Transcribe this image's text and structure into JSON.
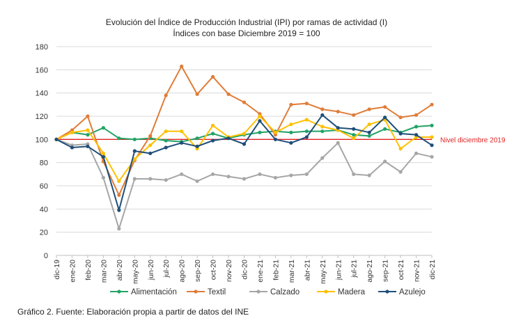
{
  "chart_data": {
    "type": "line",
    "title": "Evolución del Índice de Producción Industrial (IPI) por ramas de actividad (I)",
    "subtitle": "Índices con base Diciembre 2019 = 100",
    "ylim": [
      0,
      180
    ],
    "yticks": [
      0,
      20,
      40,
      60,
      80,
      100,
      120,
      140,
      160,
      180
    ],
    "grid": true,
    "legend": "bottom",
    "categories": [
      "dic-19",
      "ene-20",
      "feb-20",
      "mar-20",
      "abr-20",
      "may-20",
      "jun-20",
      "jul-20",
      "ago-20",
      "sep-20",
      "oct-20",
      "nov-20",
      "dic-20",
      "ene-21",
      "feb-21",
      "mar-21",
      "abr-21",
      "may-21",
      "jun-21",
      "jul-21",
      "ago-21",
      "sep-21",
      "oct-21",
      "nov-21",
      "dic-21"
    ],
    "xtick_labels": [
      "dic-19",
      "ene-20",
      "feb-20",
      "mar-20",
      "abr-20",
      "may-20",
      "jun-20",
      "jul-20",
      "ago-20",
      "sep-20",
      "oct-20",
      "nov-20",
      "dic-20",
      "ene-21",
      "feb-21",
      "mar-21",
      "abr-21",
      "may-21",
      "jun-21",
      "jul-21",
      "ago-21",
      "sep-21",
      "oct-21",
      "nov-21",
      "dic-21"
    ],
    "reference_line": {
      "value": 100,
      "label": "Nivel diciembre 2019",
      "color": "#e02020"
    },
    "series": [
      {
        "name": "Alimentación",
        "color": "#21a366",
        "values": [
          100,
          106,
          104,
          110,
          101,
          100,
          101,
          99,
          98,
          101,
          105,
          101,
          104,
          106,
          107,
          106,
          107,
          107,
          108,
          104,
          103,
          109,
          106,
          111,
          112
        ]
      },
      {
        "name": "Textil",
        "color": "#e07c38",
        "values": [
          100,
          108,
          120,
          81,
          52,
          82,
          103,
          138,
          163,
          139,
          154,
          139,
          132,
          122,
          104,
          130,
          131,
          126,
          124,
          121,
          126,
          128,
          119,
          121,
          130
        ]
      },
      {
        "name": "Calzado",
        "color": "#a6a6a6",
        "values": [
          100,
          95,
          96,
          67,
          23,
          66,
          66,
          65,
          70,
          64,
          70,
          68,
          66,
          70,
          67,
          69,
          70,
          84,
          97,
          70,
          69,
          81,
          72,
          88,
          85
        ]
      },
      {
        "name": "Madera",
        "color": "#ffc000",
        "values": [
          100,
          106,
          108,
          88,
          64,
          83,
          95,
          107,
          107,
          92,
          112,
          102,
          105,
          120,
          106,
          113,
          117,
          111,
          108,
          101,
          113,
          117,
          92,
          102,
          102
        ]
      },
      {
        "name": "Azulejo",
        "color": "#1f4e79",
        "values": [
          100,
          93,
          94,
          85,
          39,
          90,
          88,
          93,
          97,
          94,
          99,
          101,
          96,
          116,
          100,
          97,
          102,
          121,
          110,
          109,
          106,
          119,
          105,
          104,
          95
        ]
      }
    ]
  },
  "caption": "Gráfico 2. Fuente: Elaboración propia a partir de datos del INE"
}
